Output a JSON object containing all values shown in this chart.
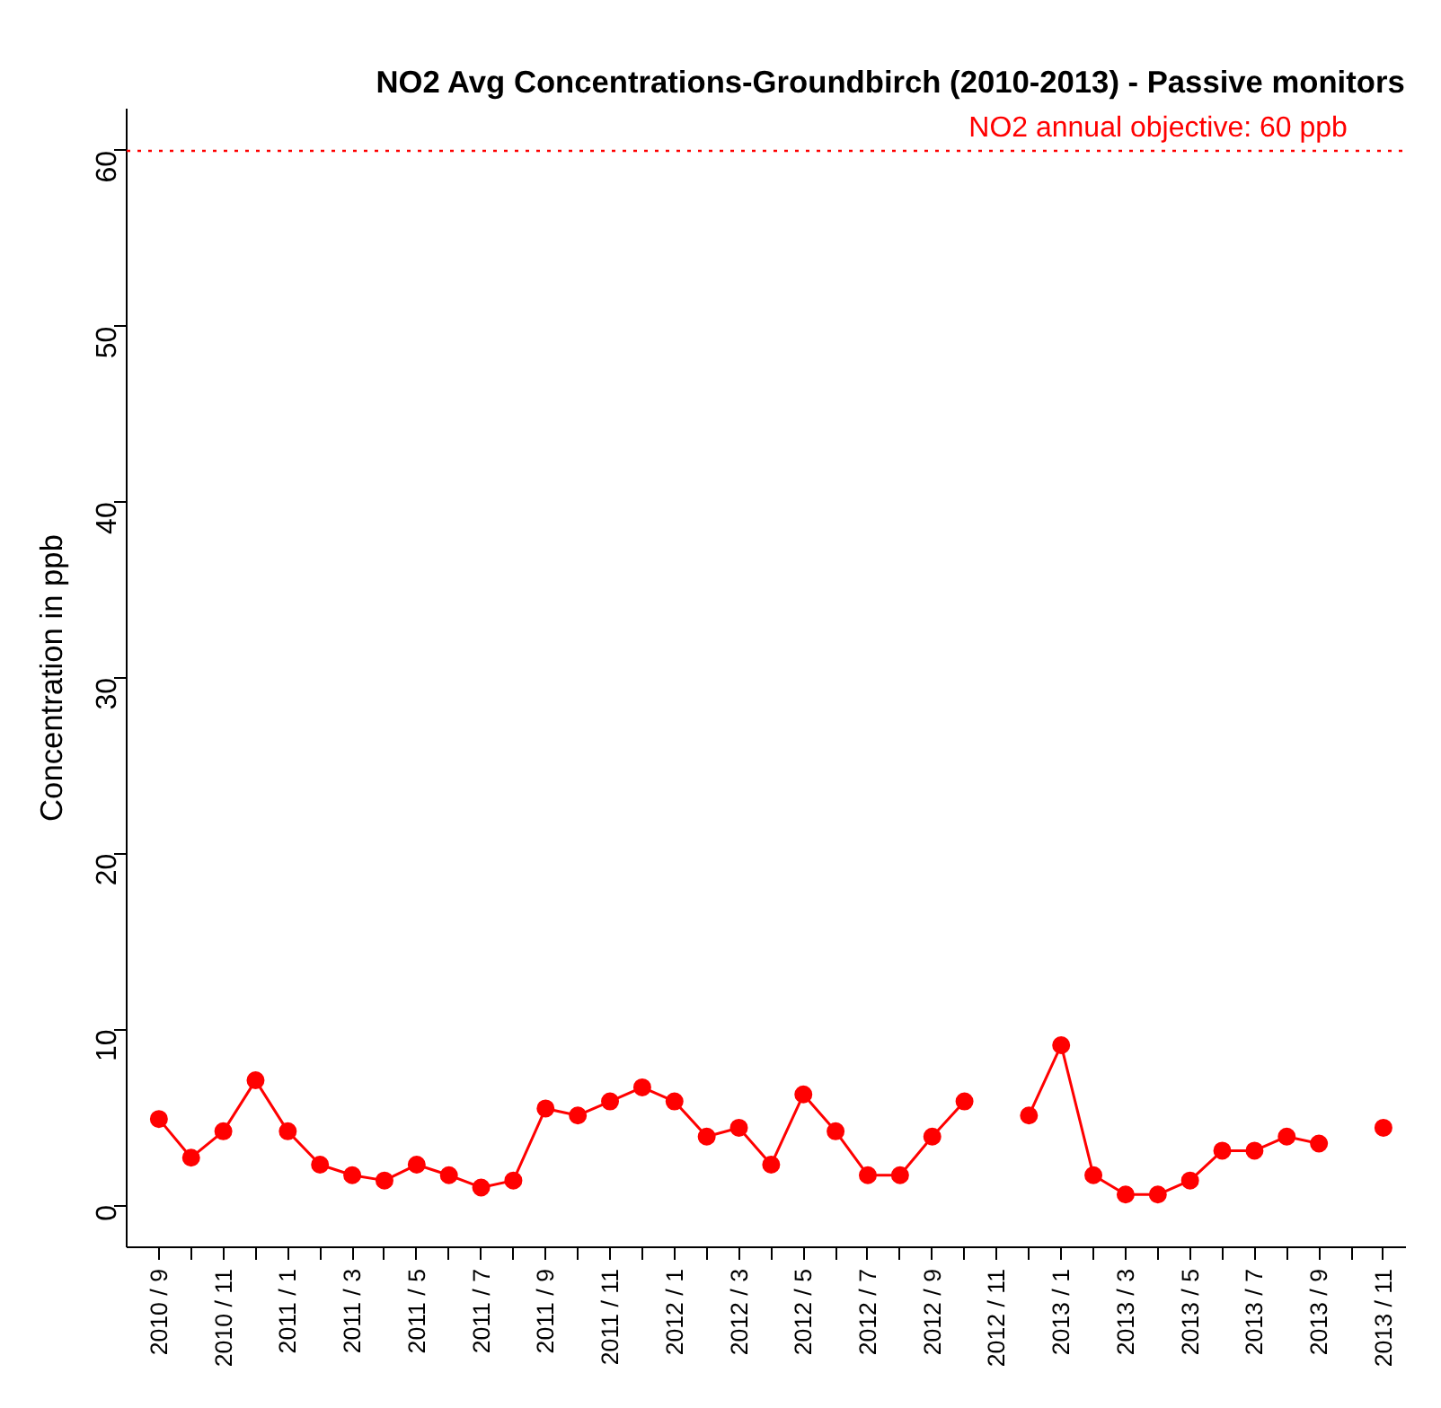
{
  "chart_data": {
    "type": "line",
    "title": "NO2 Avg Concentrations-Groundbirch (2010-2013) - Passive monitors",
    "ylabel": "Concentration in ppb",
    "categories": [
      "2010 / 9",
      null,
      "2010 / 11",
      null,
      "2011 / 1",
      null,
      "2011 / 3",
      null,
      "2011 / 5",
      null,
      "2011 / 7",
      null,
      "2011 / 9",
      null,
      "2011 / 11",
      null,
      "2012 / 1",
      null,
      "2012 / 3",
      null,
      "2012 / 5",
      null,
      "2012 / 7",
      null,
      "2012 / 9",
      null,
      "2012 / 11",
      null,
      "2013 / 1",
      null,
      "2013 / 3",
      null,
      "2013 / 5",
      null,
      "2013 / 7",
      null,
      "2013 / 9",
      null,
      "2013 / 11"
    ],
    "series": [
      {
        "color": "#ff0000",
        "values": [
          4.9,
          2.7,
          4.2,
          7.1,
          4.2,
          2.3,
          1.7,
          1.4,
          2.3,
          1.7,
          1.0,
          1.4,
          5.5,
          5.1,
          5.9,
          6.7,
          5.9,
          3.9,
          4.4,
          2.3,
          6.3,
          4.2,
          1.7,
          1.7,
          3.9,
          5.9,
          null,
          5.1,
          9.1,
          1.7,
          0.6,
          0.6,
          1.4,
          3.1,
          3.1,
          3.9,
          3.5,
          null,
          4.4
        ]
      }
    ],
    "ylim": [
      -2.4,
      62.4
    ],
    "yticks": [
      0,
      10,
      20,
      30,
      40,
      50,
      60
    ],
    "ref_lines": [
      {
        "axis": "y",
        "value": 60,
        "label": "NO2 annual objective: 60 ppb",
        "color": "#ff0000",
        "line_style": "dotted"
      }
    ],
    "marker": "circle",
    "line_style": "solid",
    "grid": false
  }
}
